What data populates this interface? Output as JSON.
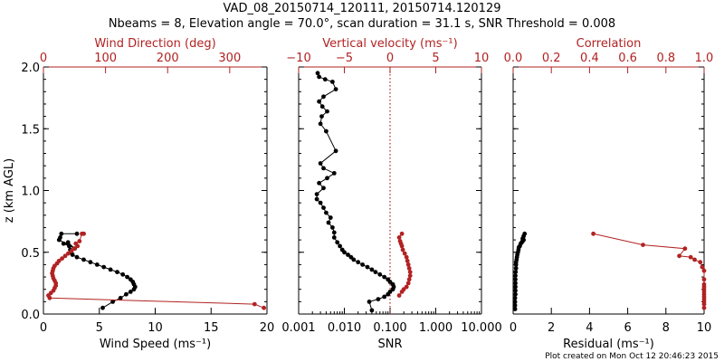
{
  "title_line1": "VAD_08_20150714_120111, 20150714.120129",
  "title_line2": "Nbeams = 8, Elevation angle = 70.0°, scan duration = 31.1 s, SNR Threshold = 0.008",
  "footer": "Plot created on Mon Oct 12 20:46:23 2015",
  "colors": {
    "axis": "#000000",
    "secondary": "#b22222",
    "background": "#ffffff"
  },
  "chart_data": [
    {
      "type": "scatter",
      "name": "wind",
      "ylabel": "z (km AGL)",
      "ylim": [
        0,
        2
      ],
      "yticks": [
        "0.0",
        "0.5",
        "1.0",
        "1.5",
        "2.0"
      ],
      "bottom_axis": {
        "label": "Wind Speed (ms⁻¹)",
        "range": [
          0,
          20
        ],
        "ticks": [
          "0",
          "5",
          "10",
          "15",
          "20"
        ]
      },
      "top_axis": {
        "label": "Wind Direction (deg)",
        "range": [
          0,
          360
        ],
        "ticks": [
          "0",
          "100",
          "200",
          "300"
        ]
      },
      "series": [
        {
          "axis": "bottom",
          "color": "#000000",
          "x": [
            5.3,
            6.2,
            6.9,
            7.4,
            7.8,
            8.1,
            8.2,
            8.1,
            8.0,
            7.8,
            7.5,
            7.1,
            6.6,
            6.0,
            5.4,
            4.8,
            4.2,
            3.6,
            3.0,
            2.6,
            2.5,
            2.4,
            2.3,
            1.8,
            2.2,
            2.8,
            1.4,
            1.5,
            1.6,
            3.0
          ],
          "y": [
            0.05,
            0.1,
            0.13,
            0.16,
            0.18,
            0.2,
            0.22,
            0.24,
            0.26,
            0.28,
            0.3,
            0.32,
            0.34,
            0.36,
            0.38,
            0.4,
            0.42,
            0.44,
            0.46,
            0.48,
            0.5,
            0.52,
            0.55,
            0.57,
            0.58,
            0.53,
            0.6,
            0.62,
            0.65,
            0.65
          ]
        },
        {
          "axis": "top",
          "color": "#b22222",
          "x": [
            355,
            340,
            10,
            8,
            12,
            16,
            18,
            20,
            20,
            18,
            16,
            15,
            14,
            15,
            16,
            18,
            22,
            25,
            30,
            35,
            40,
            45,
            50,
            55,
            52,
            58,
            62,
            65
          ],
          "y": [
            0.05,
            0.08,
            0.13,
            0.15,
            0.17,
            0.19,
            0.21,
            0.23,
            0.25,
            0.27,
            0.29,
            0.31,
            0.33,
            0.35,
            0.37,
            0.39,
            0.41,
            0.43,
            0.45,
            0.47,
            0.49,
            0.51,
            0.53,
            0.55,
            0.57,
            0.59,
            0.65,
            0.65
          ]
        }
      ]
    },
    {
      "type": "scatter",
      "name": "snr",
      "ylim": [
        0,
        2
      ],
      "bottom_axis": {
        "label": "SNR",
        "range": [
          0.001,
          10
        ],
        "scale": "log",
        "ticks": [
          "0.001",
          "0.010",
          "0.100",
          "1.000",
          "10.000"
        ]
      },
      "top_axis": {
        "label": "Vertical velocity (ms⁻¹)",
        "range": [
          -10,
          10
        ],
        "ticks": [
          "−10",
          "−5",
          "0",
          "5",
          "10"
        ],
        "reference_line": 0
      },
      "series": [
        {
          "axis": "bottom",
          "color": "#000000",
          "x": [
            0.04,
            0.035,
            0.055,
            0.075,
            0.09,
            0.1,
            0.115,
            0.12,
            0.115,
            0.1,
            0.09,
            0.075,
            0.06,
            0.048,
            0.04,
            0.032,
            0.025,
            0.02,
            0.016,
            0.014,
            0.012,
            0.01,
            0.009,
            0.008,
            0.007,
            0.006,
            0.006,
            0.0055,
            0.0045,
            0.005,
            0.004,
            0.0035,
            0.003,
            0.0025,
            0.0025,
            0.0035,
            0.0028,
            0.0042,
            0.006,
            0.0035,
            0.003,
            0.0065,
            0.004,
            0.003,
            0.0032,
            0.0042,
            0.0033,
            0.0028,
            0.0035,
            0.0065,
            0.0055,
            0.0038,
            0.0028,
            0.0026
          ],
          "y": [
            0.03,
            0.1,
            0.12,
            0.14,
            0.16,
            0.18,
            0.2,
            0.22,
            0.24,
            0.26,
            0.28,
            0.3,
            0.32,
            0.34,
            0.36,
            0.38,
            0.4,
            0.42,
            0.44,
            0.46,
            0.48,
            0.5,
            0.52,
            0.55,
            0.58,
            0.62,
            0.66,
            0.7,
            0.74,
            0.78,
            0.82,
            0.86,
            0.9,
            0.93,
            0.97,
            1.02,
            1.06,
            1.1,
            1.14,
            1.18,
            1.22,
            1.32,
            1.48,
            1.54,
            1.6,
            1.64,
            1.68,
            1.72,
            1.76,
            1.82,
            1.88,
            1.9,
            1.92,
            1.95
          ]
        },
        {
          "axis": "top",
          "color": "#b22222",
          "x": [
            1.0,
            1.3,
            1.5,
            1.8,
            2.0,
            2.1,
            2.2,
            2.2,
            2.1,
            2.0,
            1.9,
            1.8,
            1.6,
            1.4,
            1.3,
            1.2,
            1.1,
            1.0,
            1.3
          ],
          "y": [
            0.15,
            0.18,
            0.2,
            0.22,
            0.25,
            0.28,
            0.31,
            0.34,
            0.37,
            0.4,
            0.43,
            0.46,
            0.49,
            0.52,
            0.55,
            0.57,
            0.59,
            0.62,
            0.65
          ]
        }
      ]
    },
    {
      "type": "scatter",
      "name": "correlation",
      "ylim": [
        0,
        2
      ],
      "bottom_axis": {
        "label": "Residual (ms⁻¹)",
        "range": [
          0,
          10
        ],
        "ticks": [
          "0",
          "2",
          "4",
          "6",
          "8",
          "10"
        ]
      },
      "top_axis": {
        "label": "Correlation",
        "range": [
          0,
          1
        ],
        "ticks": [
          "0.0",
          "0.2",
          "0.4",
          "0.6",
          "0.8",
          "1.0"
        ]
      },
      "series": [
        {
          "axis": "bottom",
          "color": "#000000",
          "x": [
            0.1,
            0.1,
            0.1,
            0.1,
            0.12,
            0.12,
            0.12,
            0.12,
            0.12,
            0.12,
            0.13,
            0.15,
            0.15,
            0.15,
            0.18,
            0.2,
            0.22,
            0.25,
            0.28,
            0.3,
            0.35,
            0.4,
            0.45,
            0.5,
            0.55,
            0.5,
            0.55,
            0.6
          ],
          "y": [
            0.04,
            0.07,
            0.1,
            0.13,
            0.16,
            0.19,
            0.22,
            0.25,
            0.28,
            0.31,
            0.34,
            0.37,
            0.4,
            0.42,
            0.44,
            0.46,
            0.48,
            0.5,
            0.52,
            0.54,
            0.55,
            0.57,
            0.58,
            0.59,
            0.6,
            0.61,
            0.63,
            0.65
          ]
        },
        {
          "axis": "top",
          "color": "#b22222",
          "x": [
            1.0,
            1.0,
            1.0,
            1.0,
            1.0,
            1.0,
            1.0,
            1.0,
            1.0,
            1.0,
            1.0,
            1.0,
            0.99,
            0.98,
            0.95,
            0.93,
            0.87,
            0.9,
            0.68,
            0.42
          ],
          "y": [
            0.05,
            0.08,
            0.1,
            0.12,
            0.14,
            0.16,
            0.18,
            0.2,
            0.22,
            0.24,
            0.28,
            0.35,
            0.38,
            0.42,
            0.44,
            0.46,
            0.47,
            0.53,
            0.56,
            0.65
          ]
        }
      ]
    }
  ]
}
